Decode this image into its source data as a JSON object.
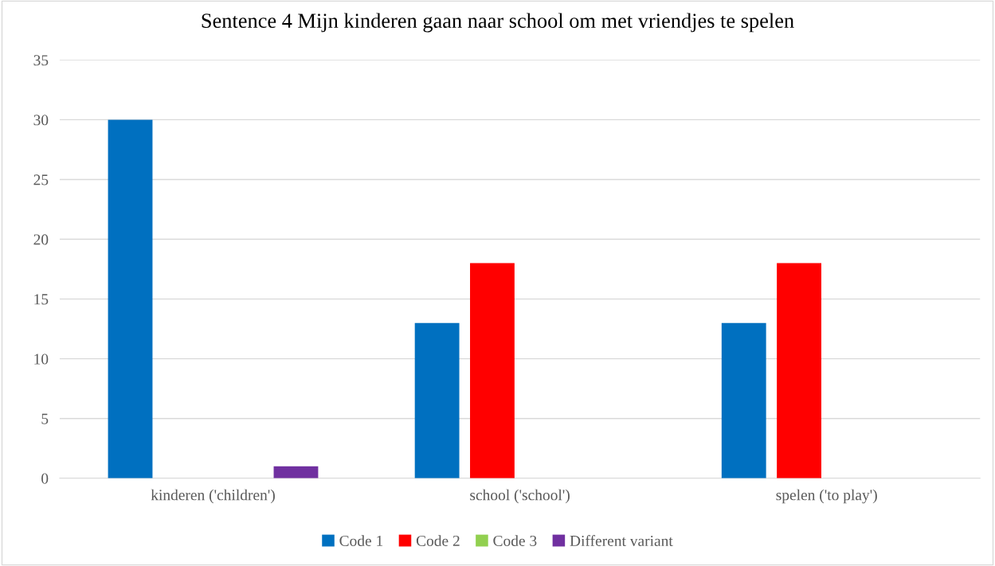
{
  "chart_data": {
    "type": "bar",
    "title": "Sentence 4 Mijn kinderen gaan naar school om met vriendjes te spelen",
    "categories": [
      "kinderen ('children')",
      "school ('school')",
      "spelen ('to play')"
    ],
    "series": [
      {
        "name": "Code 1",
        "color": "#0070c0",
        "values": [
          30,
          13,
          13
        ]
      },
      {
        "name": "Code 2",
        "color": "#ff0000",
        "values": [
          0,
          18,
          18
        ]
      },
      {
        "name": "Code 3",
        "color": "#92d050",
        "values": [
          0,
          0,
          0
        ]
      },
      {
        "name": "Different variant",
        "color": "#7030a0",
        "values": [
          1,
          0,
          0
        ]
      }
    ],
    "ylim": [
      0,
      35
    ],
    "yticks": [
      0,
      5,
      10,
      15,
      20,
      25,
      30,
      35
    ],
    "grid": "y",
    "legend": "bottom"
  }
}
